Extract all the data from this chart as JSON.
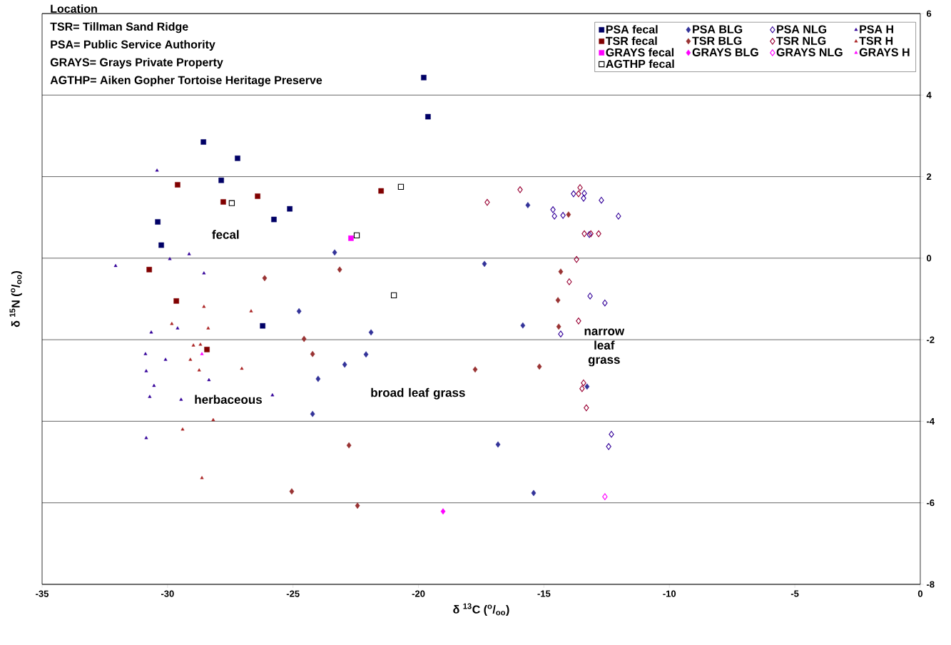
{
  "chart_data": {
    "type": "scatter",
    "xlabel": "δ $^{13}$C ($^{o}$/$_{oo}$)",
    "ylabel": "δ $^{15}$N ($^{o}$/$_{oo}$)",
    "xlim": [
      -35,
      0
    ],
    "ylim": [
      -8,
      6
    ],
    "xticks": [
      -35,
      -30,
      -25,
      -20,
      -15,
      -10,
      -5,
      0
    ],
    "yticks": [
      -8,
      -6,
      -4,
      -2,
      0,
      2,
      4,
      6
    ],
    "grid": "y",
    "legend": "top right",
    "annotations": [
      "Location",
      "TSR= Tillman Sand Ridge",
      "PSA= Public Service Authority",
      "GRAYS= Grays Private Property",
      "AGTHP= Aiken Gopher Tortoise Heritage Preserve",
      "fecal",
      "herbaceous",
      "broad leaf grass",
      "narrow leaf grass"
    ],
    "series": [
      {
        "name": "PSA fecal",
        "color": "#000066",
        "marker": "square",
        "x": [
          -28.57,
          -27.21,
          -27.86,
          -30.39,
          -30.25,
          -25.76,
          -25.13,
          -26.21,
          -19.79,
          -19.62
        ],
        "values": [
          2.85,
          2.45,
          1.91,
          0.89,
          0.32,
          0.95,
          1.21,
          -1.66,
          4.43,
          3.47
        ]
      },
      {
        "name": "PSA BLG",
        "color": "#333399",
        "marker": "diamond",
        "x": [
          -23.34,
          -17.37,
          -24.76,
          -21.89,
          -22.09,
          -22.94,
          -24.0,
          -24.22,
          -16.83,
          -15.84,
          -15.41,
          -15.64,
          -13.28
        ],
        "values": [
          0.14,
          -0.14,
          -1.3,
          -1.82,
          -2.36,
          -2.61,
          -2.96,
          -3.82,
          -4.57,
          -1.65,
          -5.76,
          1.3,
          -3.15
        ]
      },
      {
        "name": "PSA NLG",
        "color": "#330099",
        "marker": "diamond-open",
        "x": [
          -13.82,
          -13.39,
          -13.42,
          -12.71,
          -12.03,
          -13.19,
          -13.16,
          -12.57,
          -12.31,
          -12.42,
          -14.64,
          -14.58,
          -14.24,
          -14.33
        ],
        "values": [
          1.58,
          1.59,
          1.47,
          1.42,
          1.03,
          0.58,
          -0.93,
          -1.1,
          -4.32,
          -4.62,
          1.19,
          1.03,
          1.05,
          -1.86
        ]
      },
      {
        "name": "PSA H",
        "color": "#330099",
        "marker": "triangle",
        "x": [
          -29.14,
          -29.91,
          -32.07,
          -28.55,
          -30.65,
          -29.6,
          -30.88,
          -30.08,
          -30.85,
          -28.35,
          -30.54,
          -30.71,
          -29.46,
          -25.82,
          -30.85,
          -30.42
        ],
        "values": [
          0.1,
          -0.02,
          -0.19,
          -0.37,
          -1.82,
          -1.72,
          -2.35,
          -2.49,
          -2.77,
          -2.99,
          -3.13,
          -3.4,
          -3.47,
          -3.36,
          -4.41,
          2.15
        ]
      },
      {
        "name": "TSR fecal",
        "color": "#800000",
        "marker": "square",
        "x": [
          -29.6,
          -27.78,
          -26.41,
          -30.73,
          -29.65,
          -28.43,
          -21.49
        ],
        "values": [
          1.8,
          1.38,
          1.52,
          -0.28,
          -1.05,
          -2.24,
          1.65
        ]
      },
      {
        "name": "TSR BLG",
        "color": "#993333",
        "marker": "diamond",
        "x": [
          -26.13,
          -23.14,
          -24.56,
          -24.22,
          -17.74,
          -15.18,
          -22.77,
          -25.05,
          -22.43,
          -14.33,
          -14.44,
          -14.41,
          -14.02
        ],
        "values": [
          -0.49,
          -0.28,
          -1.98,
          -2.35,
          -2.73,
          -2.66,
          -4.59,
          -5.72,
          -6.07,
          -0.33,
          -1.03,
          -1.68,
          1.07
        ]
      },
      {
        "name": "TSR NLG",
        "color": "#990033",
        "marker": "diamond-open",
        "x": [
          -15.95,
          -17.26,
          -13.56,
          -13.62,
          -13.39,
          -13.13,
          -12.82,
          -13.7,
          -13.99,
          -13.62,
          -13.42,
          -13.48,
          -13.31
        ],
        "values": [
          1.68,
          1.37,
          1.73,
          1.58,
          0.6,
          0.6,
          0.6,
          -0.03,
          -0.58,
          -1.54,
          -3.06,
          -3.2,
          -3.67
        ]
      },
      {
        "name": "TSR H",
        "color": "#aa2222",
        "marker": "triangle",
        "x": [
          -28.55,
          -26.67,
          -29.83,
          -28.38,
          -28.97,
          -28.69,
          -29.09,
          -28.74,
          -27.04,
          -28.18,
          -29.4,
          -28.63
        ],
        "values": [
          -1.19,
          -1.3,
          -1.61,
          -1.72,
          -2.14,
          -2.12,
          -2.49,
          -2.75,
          -2.71,
          -3.97,
          -4.2,
          -5.39
        ]
      },
      {
        "name": "GRAYS fecal",
        "color": "#ff00ff",
        "marker": "square",
        "x": [
          -22.69
        ],
        "values": [
          0.49
        ]
      },
      {
        "name": "GRAYS BLG",
        "color": "#ff00ff",
        "marker": "diamond",
        "x": [
          -19.02
        ],
        "values": [
          -6.21
        ]
      },
      {
        "name": "GRAYS NLG",
        "color": "#ff00ff",
        "marker": "diamond-open",
        "x": [
          -12.57
        ],
        "values": [
          -5.85
        ]
      },
      {
        "name": "GRAYS H",
        "color": "#ff00ff",
        "marker": "triangle",
        "x": [
          -28.63
        ],
        "values": [
          -2.35
        ]
      },
      {
        "name": "AGTHP fecal",
        "color": "#000000",
        "marker": "square-open",
        "x": [
          -27.44,
          -20.7,
          -22.46,
          -20.98
        ],
        "values": [
          1.35,
          1.75,
          0.56,
          -0.91
        ]
      }
    ]
  }
}
